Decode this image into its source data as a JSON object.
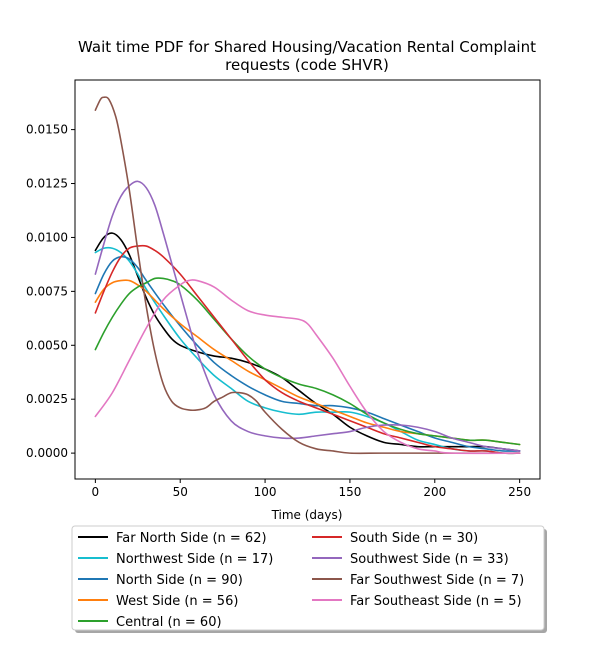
{
  "chart_data": {
    "type": "line",
    "title": "Wait time PDF for Shared Housing/Vacation Rental Complaint requests (code SHVR)",
    "title_lines": [
      "Wait time PDF for Shared Housing/Vacation Rental Complaint",
      "requests (code SHVR)"
    ],
    "xlabel": "Time (days)",
    "ylabel": "",
    "xlim": [
      -12,
      262
    ],
    "ylim": [
      -0.0012,
      0.0173
    ],
    "xticks": [
      0,
      50,
      100,
      150,
      200,
      250
    ],
    "xtick_labels": [
      "0",
      "50",
      "100",
      "150",
      "200",
      "250"
    ],
    "yticks": [
      0.0,
      0.0025,
      0.005,
      0.0075,
      0.01,
      0.0125,
      0.015
    ],
    "ytick_labels": [
      "0.0000",
      "0.0025",
      "0.0050",
      "0.0075",
      "0.0100",
      "0.0125",
      "0.0150"
    ],
    "grid": false,
    "legend_position": "below",
    "legend_columns": 2,
    "series": [
      {
        "name": "Far North Side (n = 62)",
        "color": "#000000",
        "points": [
          [
            0,
            0.0094
          ],
          [
            5,
            0.01
          ],
          [
            10,
            0.0102
          ],
          [
            15,
            0.0099
          ],
          [
            20,
            0.0092
          ],
          [
            25,
            0.0082
          ],
          [
            30,
            0.0072
          ],
          [
            35,
            0.0064
          ],
          [
            40,
            0.0058
          ],
          [
            45,
            0.0053
          ],
          [
            50,
            0.005
          ],
          [
            60,
            0.0047
          ],
          [
            70,
            0.0045
          ],
          [
            80,
            0.0044
          ],
          [
            90,
            0.0042
          ],
          [
            100,
            0.0039
          ],
          [
            110,
            0.0035
          ],
          [
            120,
            0.0029
          ],
          [
            130,
            0.0023
          ],
          [
            140,
            0.0018
          ],
          [
            150,
            0.0012
          ],
          [
            160,
            0.0008
          ],
          [
            170,
            0.0005
          ],
          [
            180,
            0.0004
          ],
          [
            190,
            0.0003
          ],
          [
            200,
            0.0003
          ],
          [
            210,
            0.0003
          ],
          [
            220,
            0.0003
          ],
          [
            230,
            0.0003
          ],
          [
            240,
            0.0002
          ],
          [
            250,
            0.0001
          ]
        ]
      },
      {
        "name": "Northwest Side (n = 17)",
        "color": "#17becf",
        "points": [
          [
            0,
            0.0093
          ],
          [
            5,
            0.0095
          ],
          [
            10,
            0.0095
          ],
          [
            15,
            0.0093
          ],
          [
            20,
            0.0089
          ],
          [
            25,
            0.0083
          ],
          [
            30,
            0.0076
          ],
          [
            40,
            0.0064
          ],
          [
            50,
            0.0053
          ],
          [
            60,
            0.0044
          ],
          [
            70,
            0.0036
          ],
          [
            80,
            0.003
          ],
          [
            90,
            0.0024
          ],
          [
            100,
            0.0021
          ],
          [
            110,
            0.0019
          ],
          [
            120,
            0.0018
          ],
          [
            130,
            0.0019
          ],
          [
            140,
            0.0019
          ],
          [
            150,
            0.0019
          ],
          [
            160,
            0.0017
          ],
          [
            170,
            0.0014
          ],
          [
            180,
            0.001
          ],
          [
            190,
            0.0006
          ],
          [
            200,
            0.0004
          ],
          [
            210,
            0.0002
          ],
          [
            220,
            0.0001
          ],
          [
            230,
            0.0001
          ],
          [
            240,
            0.0
          ],
          [
            250,
            0.0
          ]
        ]
      },
      {
        "name": "North Side (n = 90)",
        "color": "#1f77b4",
        "points": [
          [
            0,
            0.0074
          ],
          [
            5,
            0.0083
          ],
          [
            10,
            0.0089
          ],
          [
            15,
            0.0091
          ],
          [
            20,
            0.009
          ],
          [
            25,
            0.0086
          ],
          [
            30,
            0.008
          ],
          [
            40,
            0.0069
          ],
          [
            50,
            0.0059
          ],
          [
            60,
            0.005
          ],
          [
            70,
            0.0042
          ],
          [
            80,
            0.0036
          ],
          [
            90,
            0.0031
          ],
          [
            100,
            0.0027
          ],
          [
            110,
            0.0024
          ],
          [
            120,
            0.0023
          ],
          [
            130,
            0.0022
          ],
          [
            140,
            0.0022
          ],
          [
            150,
            0.0021
          ],
          [
            160,
            0.0019
          ],
          [
            170,
            0.0016
          ],
          [
            180,
            0.0013
          ],
          [
            190,
            0.001
          ],
          [
            200,
            0.0007
          ],
          [
            210,
            0.0005
          ],
          [
            220,
            0.0003
          ],
          [
            230,
            0.0002
          ],
          [
            240,
            0.0001
          ],
          [
            250,
            0.0001
          ]
        ]
      },
      {
        "name": "West Side (n = 56)",
        "color": "#ff7f0e",
        "points": [
          [
            0,
            0.007
          ],
          [
            5,
            0.0076
          ],
          [
            10,
            0.0079
          ],
          [
            15,
            0.008
          ],
          [
            20,
            0.008
          ],
          [
            25,
            0.0078
          ],
          [
            30,
            0.0075
          ],
          [
            40,
            0.0067
          ],
          [
            50,
            0.006
          ],
          [
            60,
            0.0054
          ],
          [
            70,
            0.0048
          ],
          [
            80,
            0.0043
          ],
          [
            90,
            0.0038
          ],
          [
            100,
            0.0034
          ],
          [
            110,
            0.003
          ],
          [
            120,
            0.0026
          ],
          [
            130,
            0.0023
          ],
          [
            140,
            0.002
          ],
          [
            150,
            0.0017
          ],
          [
            160,
            0.0014
          ],
          [
            170,
            0.0012
          ],
          [
            180,
            0.001
          ],
          [
            190,
            0.0009
          ],
          [
            200,
            0.0008
          ],
          [
            210,
            0.0007
          ],
          [
            220,
            0.0006
          ],
          [
            230,
            0.0006
          ],
          [
            240,
            0.0005
          ],
          [
            250,
            0.0004
          ]
        ]
      },
      {
        "name": "Central (n = 60)",
        "color": "#2ca02c",
        "points": [
          [
            0,
            0.0048
          ],
          [
            5,
            0.0056
          ],
          [
            10,
            0.0063
          ],
          [
            15,
            0.0069
          ],
          [
            20,
            0.0074
          ],
          [
            25,
            0.0077
          ],
          [
            30,
            0.0079
          ],
          [
            35,
            0.0081
          ],
          [
            40,
            0.0081
          ],
          [
            45,
            0.008
          ],
          [
            50,
            0.0078
          ],
          [
            60,
            0.0071
          ],
          [
            70,
            0.0062
          ],
          [
            80,
            0.0053
          ],
          [
            90,
            0.0045
          ],
          [
            100,
            0.0039
          ],
          [
            110,
            0.0035
          ],
          [
            120,
            0.0032
          ],
          [
            130,
            0.003
          ],
          [
            140,
            0.0027
          ],
          [
            150,
            0.0023
          ],
          [
            160,
            0.0018
          ],
          [
            170,
            0.0014
          ],
          [
            180,
            0.0011
          ],
          [
            190,
            0.0009
          ],
          [
            200,
            0.0008
          ],
          [
            210,
            0.0007
          ],
          [
            220,
            0.0006
          ],
          [
            230,
            0.0006
          ],
          [
            240,
            0.0005
          ],
          [
            250,
            0.0004
          ]
        ]
      },
      {
        "name": "South Side (n = 30)",
        "color": "#d62728",
        "points": [
          [
            0,
            0.0065
          ],
          [
            5,
            0.0075
          ],
          [
            10,
            0.0084
          ],
          [
            15,
            0.0091
          ],
          [
            20,
            0.0095
          ],
          [
            25,
            0.0096
          ],
          [
            30,
            0.0096
          ],
          [
            35,
            0.0094
          ],
          [
            40,
            0.0091
          ],
          [
            50,
            0.0083
          ],
          [
            60,
            0.0073
          ],
          [
            70,
            0.0063
          ],
          [
            80,
            0.0053
          ],
          [
            90,
            0.0043
          ],
          [
            100,
            0.0034
          ],
          [
            110,
            0.0028
          ],
          [
            120,
            0.0024
          ],
          [
            130,
            0.0021
          ],
          [
            140,
            0.0018
          ],
          [
            150,
            0.0015
          ],
          [
            160,
            0.0012
          ],
          [
            170,
            0.0009
          ],
          [
            180,
            0.0007
          ],
          [
            190,
            0.0005
          ],
          [
            200,
            0.0003
          ],
          [
            210,
            0.0002
          ],
          [
            220,
            0.0001
          ],
          [
            230,
            0.0001
          ],
          [
            240,
            0.0
          ],
          [
            250,
            0.0
          ]
        ]
      },
      {
        "name": "Southwest Side (n = 33)",
        "color": "#9467bd",
        "points": [
          [
            0,
            0.0083
          ],
          [
            5,
            0.0097
          ],
          [
            10,
            0.011
          ],
          [
            15,
            0.0119
          ],
          [
            20,
            0.0124
          ],
          [
            25,
            0.0126
          ],
          [
            30,
            0.0123
          ],
          [
            35,
            0.0115
          ],
          [
            40,
            0.0102
          ],
          [
            45,
            0.0088
          ],
          [
            50,
            0.0074
          ],
          [
            55,
            0.006
          ],
          [
            60,
            0.0047
          ],
          [
            70,
            0.0027
          ],
          [
            80,
            0.0015
          ],
          [
            90,
            0.001
          ],
          [
            100,
            0.0008
          ],
          [
            110,
            0.0007
          ],
          [
            120,
            0.0007
          ],
          [
            130,
            0.0008
          ],
          [
            140,
            0.0009
          ],
          [
            150,
            0.001
          ],
          [
            160,
            0.0012
          ],
          [
            170,
            0.0013
          ],
          [
            180,
            0.0013
          ],
          [
            190,
            0.0012
          ],
          [
            200,
            0.001
          ],
          [
            210,
            0.0007
          ],
          [
            220,
            0.0005
          ],
          [
            230,
            0.0003
          ],
          [
            240,
            0.0002
          ],
          [
            250,
            0.0001
          ]
        ]
      },
      {
        "name": "Far Southwest Side (n = 7)",
        "color": "#8c564b",
        "points": [
          [
            0,
            0.0159
          ],
          [
            3,
            0.0164
          ],
          [
            5,
            0.0165
          ],
          [
            8,
            0.0164
          ],
          [
            12,
            0.0156
          ],
          [
            15,
            0.0145
          ],
          [
            20,
            0.0122
          ],
          [
            25,
            0.0094
          ],
          [
            30,
            0.0068
          ],
          [
            35,
            0.0047
          ],
          [
            40,
            0.0032
          ],
          [
            45,
            0.0024
          ],
          [
            50,
            0.0021
          ],
          [
            55,
            0.002
          ],
          [
            60,
            0.002
          ],
          [
            65,
            0.0021
          ],
          [
            70,
            0.0024
          ],
          [
            75,
            0.0026
          ],
          [
            80,
            0.0028
          ],
          [
            85,
            0.0028
          ],
          [
            90,
            0.0027
          ],
          [
            95,
            0.0024
          ],
          [
            100,
            0.0019
          ],
          [
            110,
            0.0011
          ],
          [
            120,
            0.0005
          ],
          [
            130,
            0.0002
          ],
          [
            140,
            0.0001
          ],
          [
            150,
            0.0
          ],
          [
            170,
            0.0
          ],
          [
            200,
            0.0
          ],
          [
            250,
            0.0
          ]
        ]
      },
      {
        "name": "Far Southeast Side (n = 5)",
        "color": "#e377c2",
        "points": [
          [
            0,
            0.0017
          ],
          [
            10,
            0.0028
          ],
          [
            20,
            0.0043
          ],
          [
            30,
            0.0058
          ],
          [
            40,
            0.0071
          ],
          [
            50,
            0.0078
          ],
          [
            55,
            0.008
          ],
          [
            60,
            0.008
          ],
          [
            70,
            0.0077
          ],
          [
            80,
            0.0071
          ],
          [
            90,
            0.0066
          ],
          [
            100,
            0.0064
          ],
          [
            110,
            0.0063
          ],
          [
            120,
            0.0062
          ],
          [
            125,
            0.006
          ],
          [
            130,
            0.0055
          ],
          [
            140,
            0.0044
          ],
          [
            150,
            0.0031
          ],
          [
            160,
            0.0019
          ],
          [
            170,
            0.001
          ],
          [
            180,
            0.0005
          ],
          [
            190,
            0.0002
          ],
          [
            200,
            0.0001
          ],
          [
            210,
            0.0
          ],
          [
            250,
            0.0
          ]
        ]
      }
    ]
  }
}
